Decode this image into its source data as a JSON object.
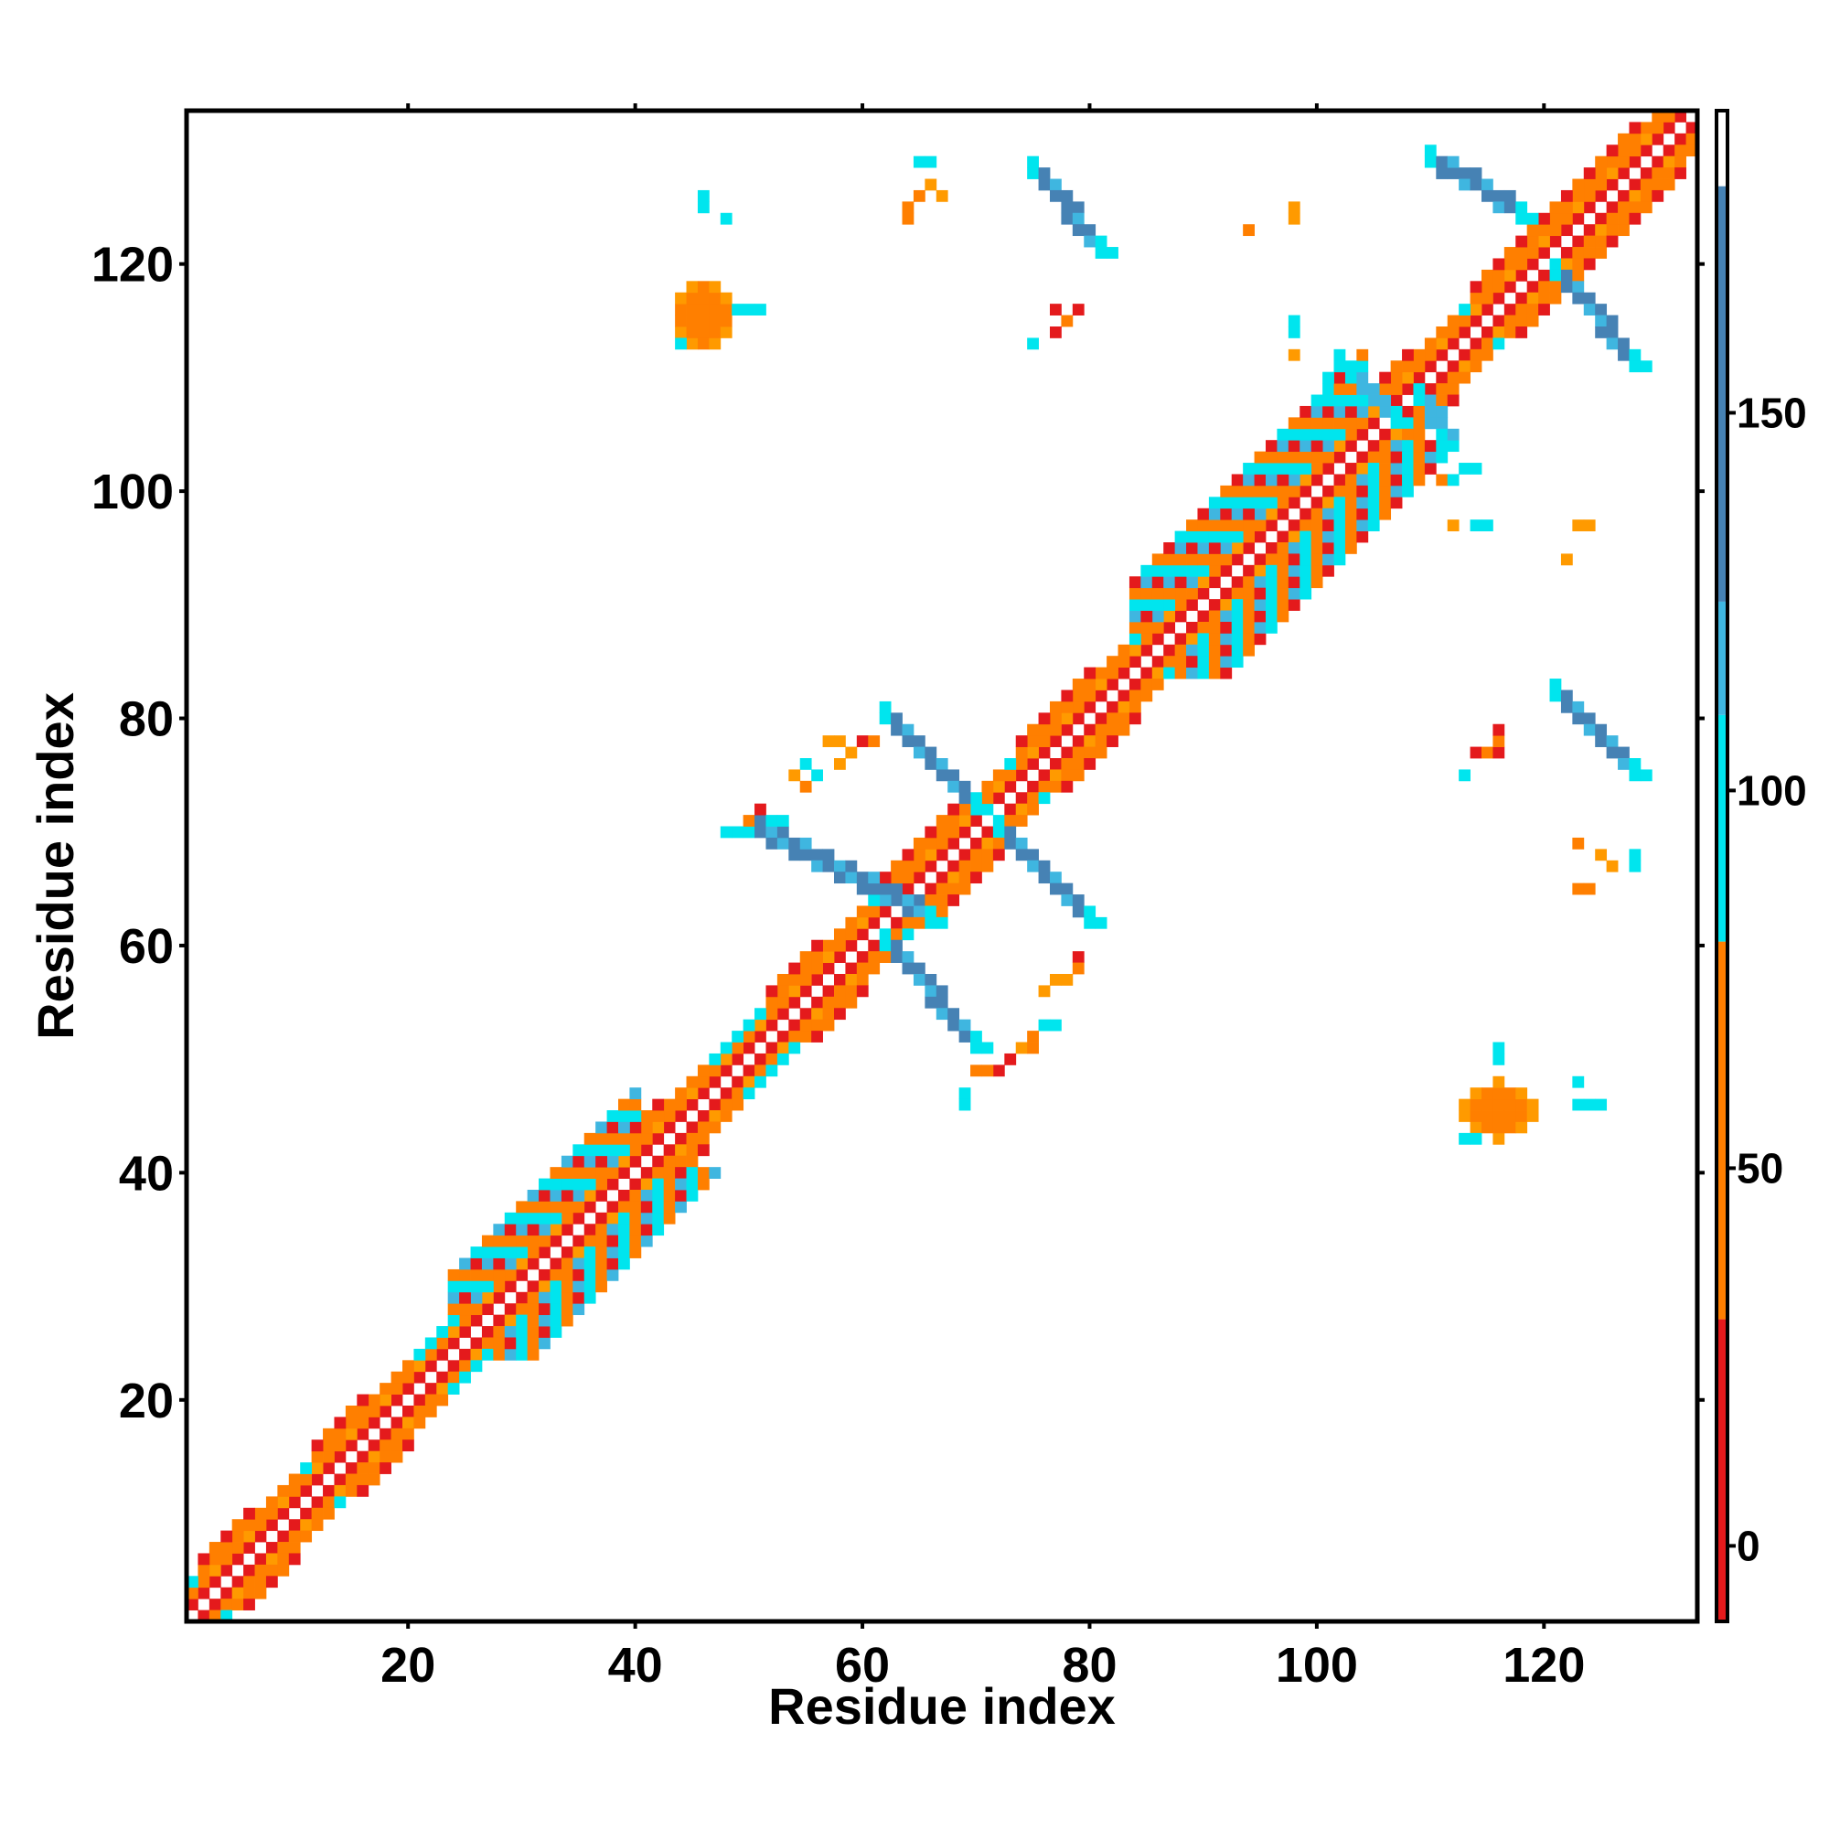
{
  "chart_data": {
    "type": "heatmap",
    "title": "",
    "xlabel": "Residue index",
    "ylabel": "Residue index",
    "xlim": [
      0.5,
      133.5
    ],
    "ylim": [
      0.5,
      133.5
    ],
    "x_ticks": [
      20,
      40,
      60,
      80,
      100,
      120
    ],
    "y_ticks": [
      20,
      40,
      60,
      80,
      100,
      120
    ],
    "x_tick_labels": [
      "20",
      "40",
      "60",
      "80",
      "100",
      "120"
    ],
    "y_tick_labels": [
      "20",
      "40",
      "60",
      "80",
      "100",
      "120"
    ],
    "grid": false,
    "colorbar": {
      "range": [
        -10,
        190
      ],
      "ticks": [
        0,
        50,
        100,
        150
      ],
      "tick_labels": [
        "0",
        "50",
        "100",
        "150"
      ],
      "bands": [
        {
          "from": -10,
          "to": 30,
          "color": "#e41a1c"
        },
        {
          "from": 30,
          "to": 80,
          "color": "#ff7f00"
        },
        {
          "from": 80,
          "to": 110,
          "color": "#00e5ee"
        },
        {
          "from": 110,
          "to": 125,
          "color": "#3fb6e0"
        },
        {
          "from": 125,
          "to": 180,
          "color": "#4682b4"
        },
        {
          "from": 180,
          "to": 190,
          "color": "#ffffff"
        }
      ]
    },
    "palette": {
      "red": "#e41a1c",
      "orange": "#ff7f00",
      "amber": "#ff9a00",
      "cyan": "#00e5ee",
      "lightblue": "#3fb6e0",
      "steelblue": "#4682b4"
    },
    "diagonal_bands": [
      {
        "from": 1,
        "to": 133,
        "offset": 0,
        "color": "white"
      },
      {
        "from": 1,
        "to": 133,
        "offset": 1,
        "color": "red"
      },
      {
        "from": 1,
        "to": 133,
        "offset": 2,
        "color": "orange"
      },
      {
        "from": 1,
        "to": 133,
        "offset": 3,
        "color": "cyan"
      }
    ],
    "helix_regions": [
      {
        "from": 2,
        "to": 10
      },
      {
        "from": 12,
        "to": 20
      },
      {
        "from": 38,
        "to": 46
      },
      {
        "from": 52,
        "to": 60
      },
      {
        "from": 62,
        "to": 72
      },
      {
        "from": 74,
        "to": 84
      },
      {
        "from": 104,
        "to": 112
      },
      {
        "from": 114,
        "to": 132
      }
    ],
    "sheet_regions": [
      {
        "from": 24,
        "to": 40,
        "width": 4
      },
      {
        "from": 84,
        "to": 104,
        "width": 5
      }
    ],
    "cross_strips": [
      {
        "x1": 50,
        "y1": 70,
        "x2": 66,
        "y2": 62,
        "width": 2,
        "color": "steelblue"
      },
      {
        "x1": 72,
        "y1": 70,
        "x2": 80,
        "y2": 62,
        "width": 2,
        "color": "steelblue"
      },
      {
        "x1": 62,
        "y1": 80,
        "x2": 70,
        "y2": 72,
        "width": 2,
        "color": "steelblue"
      },
      {
        "x1": 62,
        "y1": 60,
        "x2": 70,
        "y2": 51,
        "width": 2,
        "color": "steelblue"
      },
      {
        "x1": 75,
        "y1": 128,
        "x2": 81,
        "y2": 121,
        "width": 2,
        "color": "steelblue"
      },
      {
        "x1": 121,
        "y1": 82,
        "x2": 128,
        "y2": 75,
        "width": 2,
        "color": "steelblue"
      },
      {
        "x1": 110,
        "y1": 129,
        "x2": 118,
        "y2": 124,
        "width": 2,
        "color": "steelblue"
      },
      {
        "x1": 121,
        "y1": 119,
        "x2": 128,
        "y2": 111,
        "width": 2,
        "color": "steelblue"
      },
      {
        "x1": 103,
        "y1": 110,
        "x2": 107,
        "y2": 106,
        "width": 2,
        "color": "lightblue"
      },
      {
        "x1": 109,
        "y1": 108,
        "x2": 111,
        "y2": 104,
        "width": 2,
        "color": "lightblue"
      }
    ],
    "blobs": [
      {
        "cx": 46,
        "cy": 115.5,
        "rx": 2.6,
        "ry": 3.2,
        "color": "orange"
      },
      {
        "cx": 116,
        "cy": 45.5,
        "rx": 3.2,
        "ry": 2.6,
        "color": "orange"
      }
    ],
    "scattered_cells": [
      {
        "x": 46,
        "y": 126,
        "color": "cyan"
      },
      {
        "x": 46,
        "y": 125,
        "color": "cyan"
      },
      {
        "x": 48,
        "y": 124,
        "color": "cyan"
      },
      {
        "x": 49,
        "y": 116,
        "color": "cyan"
      },
      {
        "x": 50,
        "y": 116,
        "color": "cyan"
      },
      {
        "x": 51,
        "y": 116,
        "color": "cyan"
      },
      {
        "x": 44,
        "y": 113,
        "color": "cyan"
      },
      {
        "x": 65,
        "y": 129,
        "color": "cyan"
      },
      {
        "x": 66,
        "y": 129,
        "color": "cyan"
      },
      {
        "x": 66,
        "y": 127,
        "color": "amber"
      },
      {
        "x": 67,
        "y": 126,
        "color": "amber"
      },
      {
        "x": 65,
        "y": 126,
        "color": "orange"
      },
      {
        "x": 64,
        "y": 125,
        "color": "orange"
      },
      {
        "x": 64,
        "y": 124,
        "color": "orange"
      },
      {
        "x": 94,
        "y": 123,
        "color": "orange"
      },
      {
        "x": 98,
        "y": 125,
        "color": "amber"
      },
      {
        "x": 98,
        "y": 124,
        "color": "amber"
      },
      {
        "x": 77,
        "y": 116,
        "color": "red"
      },
      {
        "x": 78,
        "y": 115,
        "color": "orange"
      },
      {
        "x": 79,
        "y": 116,
        "color": "red"
      },
      {
        "x": 77,
        "y": 114,
        "color": "red"
      },
      {
        "x": 75,
        "y": 113,
        "color": "cyan"
      },
      {
        "x": 98,
        "y": 115,
        "color": "cyan"
      },
      {
        "x": 98,
        "y": 114,
        "color": "cyan"
      },
      {
        "x": 98,
        "y": 112,
        "color": "amber"
      },
      {
        "x": 102,
        "y": 112,
        "color": "cyan"
      },
      {
        "x": 102,
        "y": 111,
        "color": "cyan"
      },
      {
        "x": 101,
        "y": 110,
        "color": "cyan"
      },
      {
        "x": 101,
        "y": 109,
        "color": "cyan"
      },
      {
        "x": 111,
        "y": 101,
        "color": "orange"
      },
      {
        "x": 112,
        "y": 101,
        "color": "cyan"
      },
      {
        "x": 113,
        "y": 102,
        "color": "cyan"
      },
      {
        "x": 114,
        "y": 102,
        "color": "cyan"
      },
      {
        "x": 112,
        "y": 97,
        "color": "amber"
      },
      {
        "x": 114,
        "y": 97,
        "color": "cyan"
      },
      {
        "x": 115,
        "y": 97,
        "color": "cyan"
      },
      {
        "x": 123,
        "y": 97,
        "color": "amber"
      },
      {
        "x": 124,
        "y": 97,
        "color": "amber"
      },
      {
        "x": 122,
        "y": 94,
        "color": "amber"
      },
      {
        "x": 114,
        "y": 77,
        "color": "red"
      },
      {
        "x": 115,
        "y": 77,
        "color": "orange"
      },
      {
        "x": 116,
        "y": 77,
        "color": "red"
      },
      {
        "x": 116,
        "y": 78,
        "color": "orange"
      },
      {
        "x": 116,
        "y": 79,
        "color": "red"
      },
      {
        "x": 113,
        "y": 75,
        "color": "cyan"
      },
      {
        "x": 123,
        "y": 69,
        "color": "orange"
      },
      {
        "x": 125,
        "y": 68,
        "color": "amber"
      },
      {
        "x": 126,
        "y": 67,
        "color": "amber"
      },
      {
        "x": 123,
        "y": 65,
        "color": "orange"
      },
      {
        "x": 124,
        "y": 65,
        "color": "orange"
      },
      {
        "x": 128,
        "y": 68,
        "color": "cyan"
      },
      {
        "x": 128,
        "y": 67,
        "color": "cyan"
      },
      {
        "x": 116,
        "y": 51,
        "color": "cyan"
      },
      {
        "x": 116,
        "y": 50,
        "color": "cyan"
      },
      {
        "x": 123,
        "y": 48,
        "color": "cyan"
      },
      {
        "x": 123,
        "y": 46,
        "color": "cyan"
      },
      {
        "x": 124,
        "y": 46,
        "color": "cyan"
      },
      {
        "x": 125,
        "y": 46,
        "color": "cyan"
      },
      {
        "x": 113,
        "y": 43,
        "color": "cyan"
      },
      {
        "x": 114,
        "y": 43,
        "color": "cyan"
      },
      {
        "x": 49,
        "y": 70,
        "color": "cyan"
      },
      {
        "x": 48,
        "y": 70,
        "color": "cyan"
      },
      {
        "x": 50,
        "y": 71,
        "color": "orange"
      },
      {
        "x": 51,
        "y": 72,
        "color": "red"
      },
      {
        "x": 52,
        "y": 71,
        "color": "cyan"
      },
      {
        "x": 53,
        "y": 71,
        "color": "cyan"
      },
      {
        "x": 55,
        "y": 76,
        "color": "cyan"
      },
      {
        "x": 56,
        "y": 75,
        "color": "cyan"
      },
      {
        "x": 54,
        "y": 75,
        "color": "amber"
      },
      {
        "x": 55,
        "y": 74,
        "color": "orange"
      },
      {
        "x": 57,
        "y": 78,
        "color": "amber"
      },
      {
        "x": 58,
        "y": 78,
        "color": "amber"
      },
      {
        "x": 58,
        "y": 76,
        "color": "amber"
      },
      {
        "x": 59,
        "y": 77,
        "color": "amber"
      },
      {
        "x": 60,
        "y": 78,
        "color": "red"
      },
      {
        "x": 61,
        "y": 78,
        "color": "orange"
      },
      {
        "x": 79,
        "y": 59,
        "color": "red"
      },
      {
        "x": 79,
        "y": 58,
        "color": "orange"
      },
      {
        "x": 78,
        "y": 57,
        "color": "amber"
      },
      {
        "x": 77,
        "y": 57,
        "color": "amber"
      },
      {
        "x": 76,
        "y": 56,
        "color": "amber"
      },
      {
        "x": 77,
        "y": 53,
        "color": "cyan"
      },
      {
        "x": 76,
        "y": 53,
        "color": "cyan"
      },
      {
        "x": 75,
        "y": 52,
        "color": "orange"
      },
      {
        "x": 74,
        "y": 51,
        "color": "amber"
      },
      {
        "x": 75,
        "y": 51,
        "color": "orange"
      },
      {
        "x": 73,
        "y": 50,
        "color": "red"
      },
      {
        "x": 72,
        "y": 49,
        "color": "red"
      },
      {
        "x": 71,
        "y": 49,
        "color": "orange"
      },
      {
        "x": 70,
        "y": 49,
        "color": "orange"
      },
      {
        "x": 69,
        "y": 47,
        "color": "cyan"
      },
      {
        "x": 69,
        "y": 46,
        "color": "cyan"
      }
    ]
  }
}
